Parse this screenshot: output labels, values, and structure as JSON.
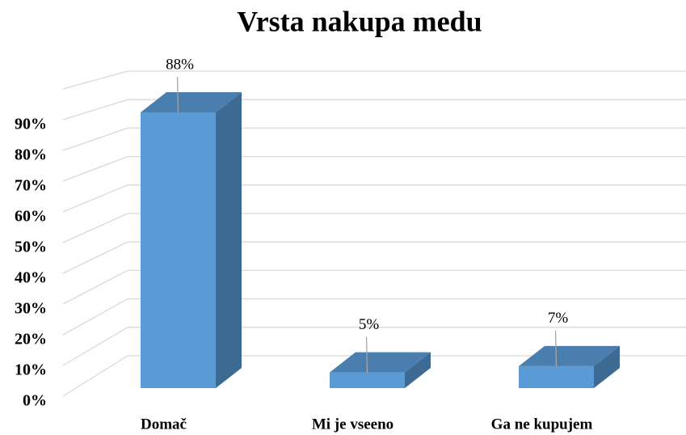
{
  "chart_data": {
    "type": "bar3d",
    "title": "Vrsta nakupa medu",
    "categories": [
      "Domač",
      "Mi je vseeno",
      "Ga ne kupujem"
    ],
    "values": [
      88,
      5,
      7
    ],
    "value_labels": [
      "88%",
      "5%",
      "7%"
    ],
    "color": "#5b9bd5",
    "ylim": [
      0,
      100
    ],
    "yticks": [
      {
        "value": 0,
        "label": "0%"
      },
      {
        "value": 10,
        "label": "10%"
      },
      {
        "value": 20,
        "label": "20%"
      },
      {
        "value": 30,
        "label": "30%"
      },
      {
        "value": 40,
        "label": "40%"
      },
      {
        "value": 50,
        "label": "50%"
      },
      {
        "value": 60,
        "label": "60%"
      },
      {
        "value": 70,
        "label": "70%"
      },
      {
        "value": 80,
        "label": "80%"
      },
      {
        "value": 90,
        "label": "90%"
      }
    ],
    "grid": true
  }
}
